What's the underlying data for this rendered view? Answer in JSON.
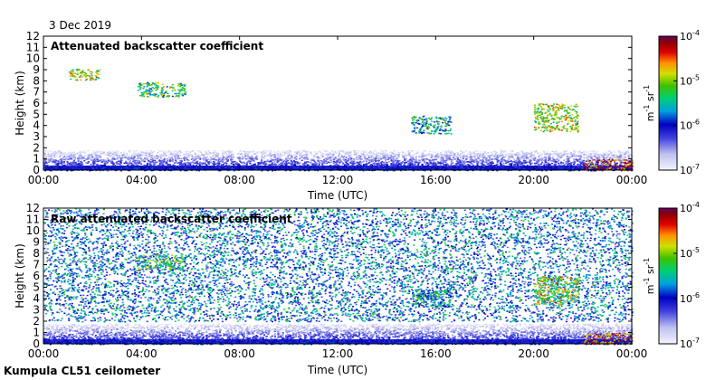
{
  "date": "3 Dec 2019",
  "footer": "Kumpula CL51 ceilometer",
  "chart_data": [
    {
      "type": "heatmap",
      "title": "Attenuated backscatter coefficient",
      "xlabel": "Time (UTC)",
      "ylabel": "Height (km)",
      "x_ticks": [
        "00:00",
        "04:00",
        "08:00",
        "12:00",
        "16:00",
        "20:00",
        "00:00"
      ],
      "x_range_hours": [
        0,
        24
      ],
      "y_ticks": [
        0,
        1,
        2,
        3,
        4,
        5,
        6,
        7,
        8,
        9,
        10,
        11,
        12
      ],
      "ylim": [
        0,
        12
      ],
      "colorbar": {
        "scale": "log",
        "range": [
          1e-07,
          0.0001
        ],
        "ticks": [
          {
            "base": "10",
            "exp": "-4",
            "value": 0.0001
          },
          {
            "base": "10",
            "exp": "-5",
            "value": 1e-05
          },
          {
            "base": "10",
            "exp": "-6",
            "value": 1e-06
          },
          {
            "base": "10",
            "exp": "-7",
            "value": 1e-07
          }
        ],
        "unit": {
          "m": "m",
          "m_exp": "-1",
          "sr": "sr",
          "sr_exp": "-1"
        }
      },
      "features": [
        {
          "desc": "boundary layer",
          "hours": [
            0,
            24
          ],
          "height_km": [
            0,
            1.8
          ],
          "log_beta": -6.6
        },
        {
          "desc": "cloud",
          "hours": [
            1.0,
            2.3
          ],
          "height_km": [
            8.1,
            9.1
          ],
          "log_beta": -5.0
        },
        {
          "desc": "cloud",
          "hours": [
            3.8,
            5.8
          ],
          "height_km": [
            6.6,
            7.9
          ],
          "log_beta": -5.3
        },
        {
          "desc": "cloud",
          "hours": [
            15.0,
            16.6
          ],
          "height_km": [
            3.3,
            4.9
          ],
          "log_beta": -5.6
        },
        {
          "desc": "cloud",
          "hours": [
            20.0,
            21.8
          ],
          "height_km": [
            3.5,
            6.0
          ],
          "log_beta": -5.0
        },
        {
          "desc": "cloud",
          "hours": [
            22.0,
            24.0
          ],
          "height_km": [
            0.0,
            1.0
          ],
          "log_beta": -4.4
        }
      ]
    },
    {
      "type": "heatmap",
      "title": "Raw attenuated backscatter coefficient",
      "xlabel": "Time (UTC)",
      "ylabel": "Height (km)",
      "x_ticks": [
        "00:00",
        "04:00",
        "08:00",
        "12:00",
        "16:00",
        "20:00",
        "00:00"
      ],
      "x_range_hours": [
        0,
        24
      ],
      "y_ticks": [
        0,
        1,
        2,
        3,
        4,
        5,
        6,
        7,
        8,
        9,
        10,
        11,
        12
      ],
      "ylim": [
        0,
        12
      ],
      "colorbar": {
        "scale": "log",
        "range": [
          1e-07,
          0.0001
        ],
        "ticks": [
          {
            "base": "10",
            "exp": "-4",
            "value": 0.0001
          },
          {
            "base": "10",
            "exp": "-5",
            "value": 1e-05
          },
          {
            "base": "10",
            "exp": "-6",
            "value": 1e-06
          },
          {
            "base": "10",
            "exp": "-7",
            "value": 1e-07
          }
        ],
        "unit": {
          "m": "m",
          "m_exp": "-1",
          "sr": "sr",
          "sr_exp": "-1"
        }
      },
      "features": [
        {
          "desc": "noise",
          "hours": [
            0,
            24
          ],
          "height_km": [
            2.0,
            12.0
          ],
          "log_beta": -5.8
        },
        {
          "desc": "boundary layer",
          "hours": [
            0,
            24
          ],
          "height_km": [
            0,
            1.8
          ],
          "log_beta": -6.6
        },
        {
          "desc": "cloud",
          "hours": [
            3.8,
            5.8
          ],
          "height_km": [
            6.6,
            7.9
          ],
          "log_beta": -5.3
        },
        {
          "desc": "cloud",
          "hours": [
            15.0,
            16.6
          ],
          "height_km": [
            3.3,
            4.9
          ],
          "log_beta": -5.6
        },
        {
          "desc": "cloud",
          "hours": [
            20.0,
            21.8
          ],
          "height_km": [
            3.5,
            6.0
          ],
          "log_beta": -5.0
        },
        {
          "desc": "cloud",
          "hours": [
            22.0,
            24.0
          ],
          "height_km": [
            0.0,
            1.0
          ],
          "log_beta": -4.4
        }
      ]
    }
  ]
}
